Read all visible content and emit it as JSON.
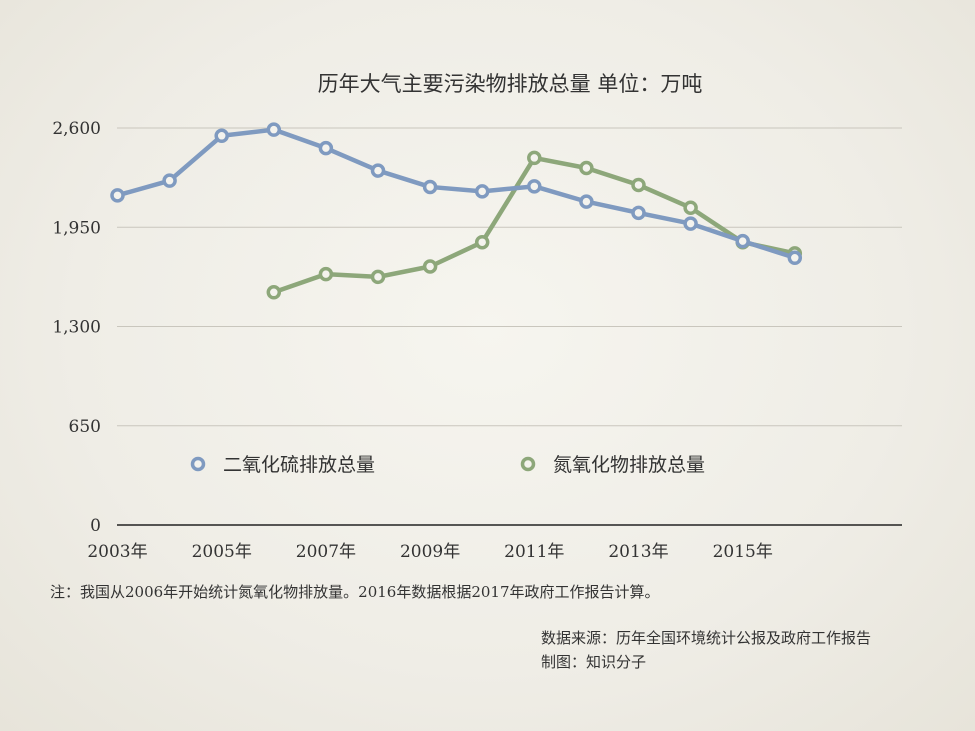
{
  "chart_data": {
    "type": "line",
    "title": "历年大气主要污染物排放总量 单位：万吨",
    "x": [
      2003,
      2004,
      2005,
      2006,
      2007,
      2008,
      2009,
      2010,
      2011,
      2012,
      2013,
      2014,
      2015,
      2016
    ],
    "x_tick_labels": [
      "2003年",
      "2005年",
      "2007年",
      "2009年",
      "2011年",
      "2013年",
      "2015年"
    ],
    "ylim": [
      0,
      2600
    ],
    "y_ticks": [
      0,
      650,
      1300,
      1950,
      2600
    ],
    "y_tick_labels": [
      "0",
      "650",
      "1,300",
      "1,950",
      "2,600"
    ],
    "grid": true,
    "legend_position": "lower-middle",
    "series": [
      {
        "name": "二氧化硫排放总量",
        "color": "#7f9ac0",
        "values": [
          2159,
          2255,
          2549,
          2589,
          2468,
          2321,
          2214,
          2185,
          2218,
          2118,
          2044,
          1974,
          1859,
          1750
        ]
      },
      {
        "name": "氮氧化物排放总量",
        "color": "#8da77a",
        "values": [
          null,
          null,
          null,
          1524,
          1643,
          1625,
          1693,
          1852,
          2404,
          2338,
          2227,
          2078,
          1852,
          1779
        ]
      }
    ]
  },
  "note": "注：我国从2006年开始统计氮氧化物排放量。2016年数据根据2017年政府工作报告计算。",
  "source_line": "数据来源：历年全国环境统计公报及政府工作报告",
  "maker_line": "制图：知识分子"
}
